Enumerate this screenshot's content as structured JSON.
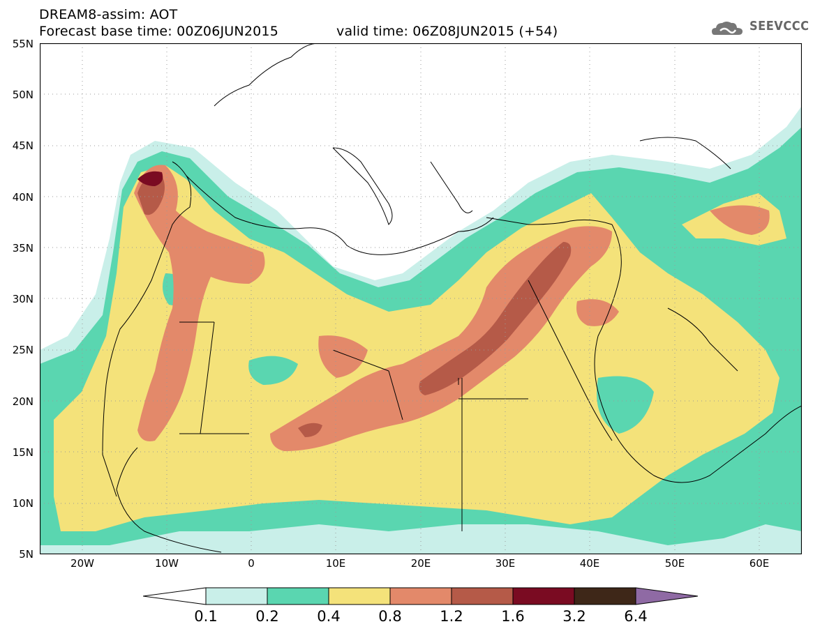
{
  "title": {
    "line1": "DREAM8-assim: AOT",
    "line2": "Forecast base time: 00Z06JUN2015",
    "valid": "valid time: 06Z08JUN2015 (+54)"
  },
  "logo": {
    "text": "SEEVCCC",
    "icon": "cloud-icon"
  },
  "map": {
    "lon_range": [
      -25,
      65
    ],
    "lat_range": [
      5,
      55
    ],
    "y_ticks": [
      "55N",
      "50N",
      "45N",
      "40N",
      "35N",
      "30N",
      "25N",
      "20N",
      "15N",
      "10N",
      "5N"
    ],
    "x_ticks": [
      "20W",
      "10W",
      "0",
      "10E",
      "20E",
      "30E",
      "40E",
      "50E",
      "60E"
    ],
    "grid": true
  },
  "legend": {
    "levels": [
      "0.1",
      "0.2",
      "0.4",
      "0.8",
      "1.2",
      "1.6",
      "3.2",
      "6.4"
    ],
    "colors": [
      "#c9efe9",
      "#5ad6b0",
      "#f4e27a",
      "#e3896a",
      "#b55a48",
      "#7a0b22",
      "#3e2718",
      "#8f6aa4"
    ],
    "extend": "both"
  }
}
